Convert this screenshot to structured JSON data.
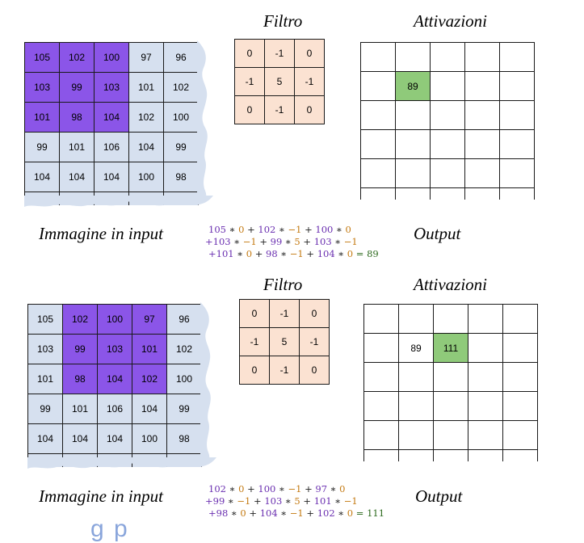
{
  "panels": [
    {
      "labels": {
        "filter": "Filtro",
        "activations": "Attivazioni",
        "input": "Immagine in input",
        "output": "Output"
      },
      "input_rows": [
        [
          "105",
          "102",
          "100",
          "97",
          "96"
        ],
        [
          "103",
          "99",
          "103",
          "101",
          "102"
        ],
        [
          "101",
          "98",
          "104",
          "102",
          "100"
        ],
        [
          "99",
          "101",
          "106",
          "104",
          "99"
        ],
        [
          "104",
          "104",
          "104",
          "100",
          "98"
        ]
      ],
      "highlight_cols_start": 0,
      "filter_rows": [
        [
          "0",
          "-1",
          "0"
        ],
        [
          "-1",
          "5",
          "-1"
        ],
        [
          "0",
          "-1",
          "0"
        ]
      ],
      "activations_row2": [
        "",
        "89",
        "",
        "",
        ""
      ],
      "formula": {
        "line1": [
          [
            "105",
            "p"
          ],
          [
            " ∗ ",
            ""
          ],
          [
            "0",
            "o"
          ],
          [
            " + ",
            ""
          ],
          [
            "102",
            "p"
          ],
          [
            " ∗ ",
            ""
          ],
          [
            "−1",
            "o"
          ],
          [
            " + ",
            ""
          ],
          [
            "100",
            "p"
          ],
          [
            " ∗ ",
            ""
          ],
          [
            "0",
            "o"
          ]
        ],
        "line2": [
          [
            "+103",
            "p"
          ],
          [
            " ∗ ",
            ""
          ],
          [
            "−1",
            "o"
          ],
          [
            " + ",
            ""
          ],
          [
            "99",
            "p"
          ],
          [
            " ∗ ",
            ""
          ],
          [
            "5",
            "o"
          ],
          [
            " + ",
            ""
          ],
          [
            "103",
            "p"
          ],
          [
            " ∗ ",
            ""
          ],
          [
            "−1",
            "o"
          ]
        ],
        "line3": [
          [
            "+101",
            "p"
          ],
          [
            " ∗ ",
            ""
          ],
          [
            "0",
            "o"
          ],
          [
            " + ",
            ""
          ],
          [
            "98",
            "p"
          ],
          [
            " ∗ ",
            ""
          ],
          [
            "−1",
            "o"
          ],
          [
            " + ",
            ""
          ],
          [
            "104",
            "p"
          ],
          [
            " ∗ ",
            ""
          ],
          [
            "0",
            "o"
          ],
          [
            "  = 89",
            "r"
          ]
        ]
      }
    },
    {
      "labels": {
        "filter": "Filtro",
        "activations": "Attivazioni",
        "input": "Immagine in input",
        "output": "Output"
      },
      "input_rows": [
        [
          "105",
          "102",
          "100",
          "97",
          "96"
        ],
        [
          "103",
          "99",
          "103",
          "101",
          "102"
        ],
        [
          "101",
          "98",
          "104",
          "102",
          "100"
        ],
        [
          "99",
          "101",
          "106",
          "104",
          "99"
        ],
        [
          "104",
          "104",
          "104",
          "100",
          "98"
        ]
      ],
      "highlight_cols_start": 1,
      "filter_rows": [
        [
          "0",
          "-1",
          "0"
        ],
        [
          "-1",
          "5",
          "-1"
        ],
        [
          "0",
          "-1",
          "0"
        ]
      ],
      "activations_row2": [
        "",
        "89",
        "111",
        "",
        ""
      ],
      "formula": {
        "line1": [
          [
            "102",
            "p"
          ],
          [
            " ∗ ",
            ""
          ],
          [
            "0",
            "o"
          ],
          [
            " + ",
            ""
          ],
          [
            "100",
            "p"
          ],
          [
            " ∗ ",
            ""
          ],
          [
            "−1",
            "o"
          ],
          [
            " + ",
            ""
          ],
          [
            "97",
            "p"
          ],
          [
            " ∗ ",
            ""
          ],
          [
            "0",
            "o"
          ]
        ],
        "line2": [
          [
            "+99",
            "p"
          ],
          [
            " ∗ ",
            ""
          ],
          [
            "−1",
            "o"
          ],
          [
            " + ",
            ""
          ],
          [
            "103",
            "p"
          ],
          [
            " ∗ ",
            ""
          ],
          [
            "5",
            "o"
          ],
          [
            " + ",
            ""
          ],
          [
            "101",
            "p"
          ],
          [
            " ∗ ",
            ""
          ],
          [
            "−1",
            "o"
          ]
        ],
        "line3": [
          [
            "+98",
            "p"
          ],
          [
            " ∗ ",
            ""
          ],
          [
            "0",
            "o"
          ],
          [
            " + ",
            ""
          ],
          [
            "104",
            "p"
          ],
          [
            " ∗ ",
            ""
          ],
          [
            "−1",
            "o"
          ],
          [
            " + ",
            ""
          ],
          [
            "102",
            "p"
          ],
          [
            " ∗ ",
            ""
          ],
          [
            "0",
            "o"
          ],
          [
            " = 111",
            "r"
          ]
        ]
      }
    }
  ],
  "footer_fragment": "g         p"
}
